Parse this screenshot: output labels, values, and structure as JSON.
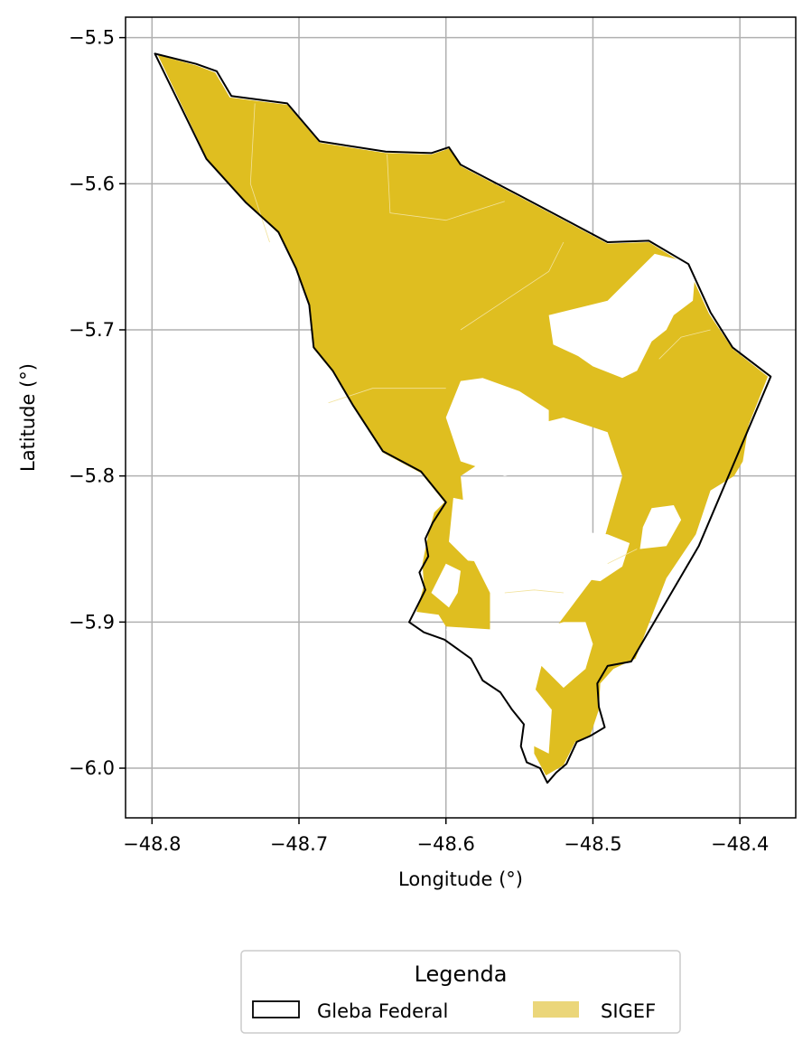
{
  "chart_data": {
    "type": "map",
    "xlabel": "Longitude (°)",
    "ylabel": "Latitude (°)",
    "xlim": [
      -48.818,
      -48.362
    ],
    "ylim": [
      -6.034,
      -5.486
    ],
    "x_ticks": [
      -48.8,
      -48.7,
      -48.6,
      -48.5,
      -48.4
    ],
    "y_ticks": [
      -5.5,
      -5.6,
      -5.7,
      -5.8,
      -5.9,
      -6.0
    ],
    "x_tick_labels": [
      "−48.8",
      "−48.7",
      "−48.6",
      "−48.5",
      "−48.4"
    ],
    "y_tick_labels": [
      "−5.5",
      "−5.6",
      "−5.7",
      "−5.8",
      "−5.9",
      "−6.0"
    ],
    "grid": true,
    "colors": {
      "gleba_edge": "#000000",
      "sigef_fill": "#dfbe20",
      "legend_sigef": "#ebd67a",
      "grid": "#b0b0b0"
    },
    "legend": {
      "title": "Legenda",
      "placement": "bottom-center",
      "entries": [
        {
          "label": "Gleba Federal",
          "style": "outline"
        },
        {
          "label": "SIGEF",
          "style": "fill"
        }
      ]
    },
    "gleba_boundary": [
      [
        -48.798,
        -5.511
      ],
      [
        -48.77,
        -5.518
      ],
      [
        -48.756,
        -5.523
      ],
      [
        -48.746,
        -5.54
      ],
      [
        -48.708,
        -5.545
      ],
      [
        -48.686,
        -5.571
      ],
      [
        -48.641,
        -5.578
      ],
      [
        -48.61,
        -5.579
      ],
      [
        -48.598,
        -5.575
      ],
      [
        -48.59,
        -5.587
      ],
      [
        -48.55,
        -5.608
      ],
      [
        -48.49,
        -5.64
      ],
      [
        -48.462,
        -5.639
      ],
      [
        -48.435,
        -5.655
      ],
      [
        -48.42,
        -5.688
      ],
      [
        -48.405,
        -5.712
      ],
      [
        -48.379,
        -5.732
      ],
      [
        -48.428,
        -5.848
      ],
      [
        -48.474,
        -5.927
      ],
      [
        -48.49,
        -5.93
      ],
      [
        -48.497,
        -5.942
      ],
      [
        -48.496,
        -5.958
      ],
      [
        -48.492,
        -5.972
      ],
      [
        -48.502,
        -5.978
      ],
      [
        -48.511,
        -5.982
      ],
      [
        -48.518,
        -5.997
      ],
      [
        -48.525,
        -6.003
      ],
      [
        -48.531,
        -6.01
      ],
      [
        -48.536,
        -6.0
      ],
      [
        -48.545,
        -5.996
      ],
      [
        -48.549,
        -5.985
      ],
      [
        -48.547,
        -5.97
      ],
      [
        -48.555,
        -5.96
      ],
      [
        -48.563,
        -5.948
      ],
      [
        -48.575,
        -5.94
      ],
      [
        -48.583,
        -5.925
      ],
      [
        -48.601,
        -5.912
      ],
      [
        -48.615,
        -5.907
      ],
      [
        -48.625,
        -5.9
      ],
      [
        -48.62,
        -5.89
      ],
      [
        -48.614,
        -5.878
      ],
      [
        -48.618,
        -5.866
      ],
      [
        -48.612,
        -5.855
      ],
      [
        -48.614,
        -5.843
      ],
      [
        -48.609,
        -5.832
      ],
      [
        -48.6,
        -5.818
      ],
      [
        -48.617,
        -5.797
      ],
      [
        -48.643,
        -5.783
      ],
      [
        -48.663,
        -5.752
      ],
      [
        -48.677,
        -5.728
      ],
      [
        -48.69,
        -5.712
      ],
      [
        -48.693,
        -5.683
      ],
      [
        -48.702,
        -5.658
      ],
      [
        -48.714,
        -5.633
      ],
      [
        -48.736,
        -5.613
      ],
      [
        -48.763,
        -5.583
      ],
      [
        -48.798,
        -5.511
      ]
    ],
    "sigef_polygons": [
      [
        [
          -48.796,
          -5.512
        ],
        [
          -48.77,
          -5.519
        ],
        [
          -48.757,
          -5.524
        ],
        [
          -48.747,
          -5.541
        ],
        [
          -48.708,
          -5.546
        ],
        [
          -48.686,
          -5.572
        ],
        [
          -48.641,
          -5.579
        ],
        [
          -48.61,
          -5.58
        ],
        [
          -48.598,
          -5.576
        ],
        [
          -48.59,
          -5.588
        ],
        [
          -48.55,
          -5.609
        ],
        [
          -48.49,
          -5.641
        ],
        [
          -48.462,
          -5.64
        ],
        [
          -48.436,
          -5.656
        ],
        [
          -48.421,
          -5.689
        ],
        [
          -48.405,
          -5.713
        ],
        [
          -48.381,
          -5.732
        ],
        [
          -48.394,
          -5.765
        ],
        [
          -48.398,
          -5.79
        ],
        [
          -48.404,
          -5.8
        ],
        [
          -48.42,
          -5.81
        ],
        [
          -48.43,
          -5.84
        ],
        [
          -48.45,
          -5.87
        ],
        [
          -48.471,
          -5.925
        ],
        [
          -48.486,
          -5.932
        ],
        [
          -48.495,
          -5.942
        ],
        [
          -48.496,
          -5.96
        ],
        [
          -48.502,
          -5.978
        ],
        [
          -48.512,
          -5.982
        ],
        [
          -48.52,
          -5.998
        ],
        [
          -48.532,
          -6.005
        ],
        [
          -48.54,
          -5.99
        ],
        [
          -48.54,
          -5.95
        ],
        [
          -48.53,
          -5.91
        ],
        [
          -48.5,
          -5.87
        ],
        [
          -48.48,
          -5.8
        ],
        [
          -48.49,
          -5.77
        ],
        [
          -48.52,
          -5.76
        ],
        [
          -48.56,
          -5.77
        ],
        [
          -48.575,
          -5.79
        ],
        [
          -48.59,
          -5.8
        ],
        [
          -48.585,
          -5.85
        ],
        [
          -48.57,
          -5.88
        ],
        [
          -48.57,
          -5.905
        ],
        [
          -48.6,
          -5.903
        ],
        [
          -48.605,
          -5.895
        ],
        [
          -48.62,
          -5.893
        ],
        [
          -48.615,
          -5.875
        ],
        [
          -48.616,
          -5.86
        ],
        [
          -48.612,
          -5.84
        ],
        [
          -48.608,
          -5.825
        ],
        [
          -48.601,
          -5.818
        ],
        [
          -48.617,
          -5.798
        ],
        [
          -48.643,
          -5.784
        ],
        [
          -48.663,
          -5.753
        ],
        [
          -48.677,
          -5.729
        ],
        [
          -48.69,
          -5.713
        ],
        [
          -48.693,
          -5.684
        ],
        [
          -48.702,
          -5.659
        ],
        [
          -48.714,
          -5.634
        ],
        [
          -48.735,
          -5.614
        ],
        [
          -48.762,
          -5.584
        ]
      ]
    ],
    "sigef_gaps": [
      [
        [
          -48.53,
          -5.69
        ],
        [
          -48.527,
          -5.71
        ],
        [
          -48.51,
          -5.718
        ],
        [
          -48.5,
          -5.725
        ],
        [
          -48.48,
          -5.733
        ],
        [
          -48.47,
          -5.728
        ],
        [
          -48.46,
          -5.708
        ],
        [
          -48.45,
          -5.7
        ],
        [
          -48.445,
          -5.69
        ],
        [
          -48.432,
          -5.68
        ],
        [
          -48.43,
          -5.655
        ],
        [
          -48.458,
          -5.648
        ],
        [
          -48.47,
          -5.66
        ],
        [
          -48.48,
          -5.67
        ],
        [
          -48.49,
          -5.68
        ],
        [
          -48.51,
          -5.685
        ]
      ],
      [
        [
          -48.59,
          -5.735
        ],
        [
          -48.6,
          -5.76
        ],
        [
          -48.59,
          -5.79
        ],
        [
          -48.56,
          -5.8
        ],
        [
          -48.54,
          -5.795
        ],
        [
          -48.53,
          -5.775
        ],
        [
          -48.53,
          -5.755
        ],
        [
          -48.55,
          -5.742
        ],
        [
          -48.575,
          -5.733
        ]
      ],
      [
        [
          -48.595,
          -5.815
        ],
        [
          -48.58,
          -5.818
        ],
        [
          -48.57,
          -5.808
        ],
        [
          -48.55,
          -5.81
        ],
        [
          -48.545,
          -5.855
        ],
        [
          -48.56,
          -5.86
        ],
        [
          -48.585,
          -5.858
        ],
        [
          -48.598,
          -5.845
        ]
      ],
      [
        [
          -48.545,
          -5.86
        ],
        [
          -48.525,
          -5.865
        ],
        [
          -48.51,
          -5.87
        ],
        [
          -48.495,
          -5.872
        ],
        [
          -48.48,
          -5.862
        ],
        [
          -48.475,
          -5.846
        ],
        [
          -48.49,
          -5.84
        ],
        [
          -48.51,
          -5.838
        ],
        [
          -48.53,
          -5.84
        ]
      ],
      [
        [
          -48.468,
          -5.85
        ],
        [
          -48.45,
          -5.848
        ],
        [
          -48.44,
          -5.83
        ],
        [
          -48.445,
          -5.82
        ],
        [
          -48.46,
          -5.822
        ],
        [
          -48.466,
          -5.835
        ]
      ],
      [
        [
          -48.61,
          -5.88
        ],
        [
          -48.6,
          -5.86
        ],
        [
          -48.59,
          -5.865
        ],
        [
          -48.592,
          -5.88
        ],
        [
          -48.598,
          -5.89
        ]
      ],
      [
        [
          -48.6,
          -5.905
        ],
        [
          -48.58,
          -5.905
        ],
        [
          -48.56,
          -5.915
        ],
        [
          -48.55,
          -5.925
        ],
        [
          -48.555,
          -5.94
        ],
        [
          -48.57,
          -5.936
        ],
        [
          -48.59,
          -5.925
        ]
      ],
      [
        [
          -48.537,
          -5.905
        ],
        [
          -48.52,
          -5.9
        ],
        [
          -48.505,
          -5.9
        ],
        [
          -48.5,
          -5.915
        ],
        [
          -48.505,
          -5.932
        ],
        [
          -48.52,
          -5.945
        ],
        [
          -48.535,
          -5.93
        ],
        [
          -48.54,
          -5.915
        ]
      ],
      [
        [
          -48.54,
          -5.945
        ],
        [
          -48.528,
          -5.96
        ],
        [
          -48.53,
          -5.99
        ],
        [
          -48.54,
          -5.985
        ],
        [
          -48.544,
          -5.965
        ]
      ]
    ]
  }
}
